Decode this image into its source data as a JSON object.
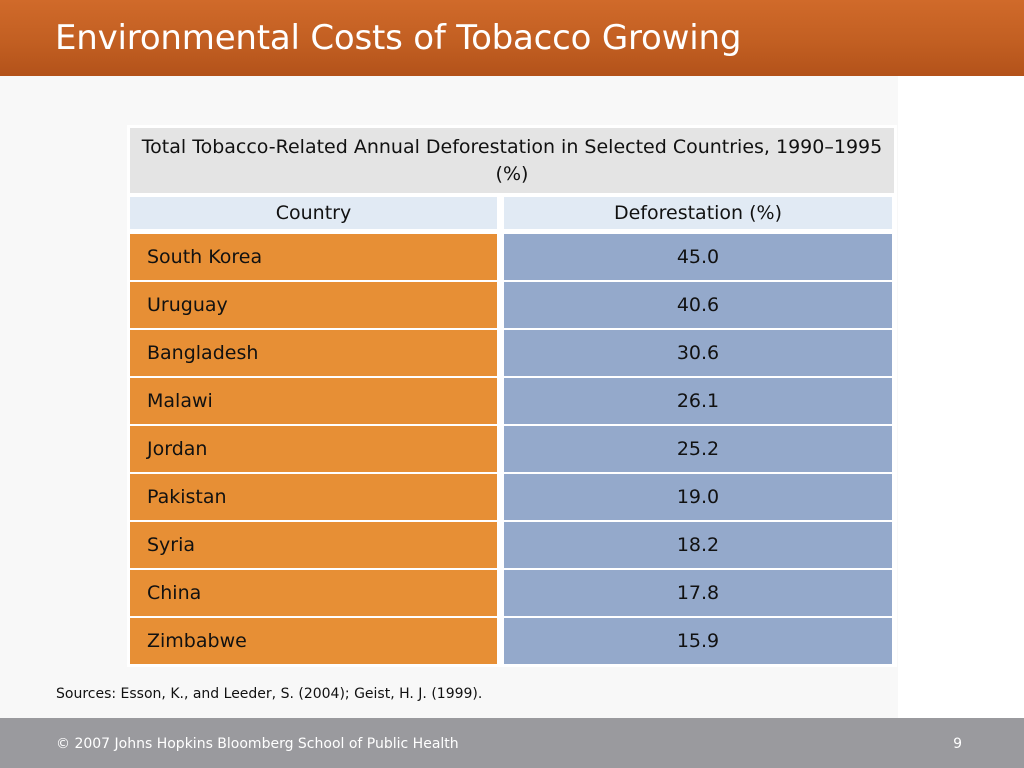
{
  "slide": {
    "title": "Environmental Costs of Tobacco Growing",
    "sources": "Sources: Esson, K., and Leeder, S. (2004); Geist, H. J. (1999).",
    "footer": "© 2007 Johns Hopkins Bloomberg School of Public Health",
    "page_number": "9"
  },
  "table": {
    "caption": "Total Tobacco-Related Annual Deforestation in Selected Countries, 1990–1995 (%)",
    "headers": [
      "Country",
      "Deforestation (%)"
    ],
    "rows": [
      [
        "South Korea",
        "45.0"
      ],
      [
        "Uruguay",
        "40.6"
      ],
      [
        "Bangladesh",
        "30.6"
      ],
      [
        "Malawi",
        "26.1"
      ],
      [
        "Jordan",
        "25.2"
      ],
      [
        "Pakistan",
        "19.0"
      ],
      [
        "Syria",
        "18.2"
      ],
      [
        "China",
        "17.8"
      ],
      [
        "Zimbabwe",
        "15.9"
      ]
    ]
  },
  "colors": {
    "title_bar": "#c25f22",
    "country_cell": "#e78f35",
    "value_cell": "#94a9cb",
    "header_cell": "#e1eaf4",
    "caption_cell": "#e4e4e4",
    "footer_bar": "#9a9a9e"
  }
}
